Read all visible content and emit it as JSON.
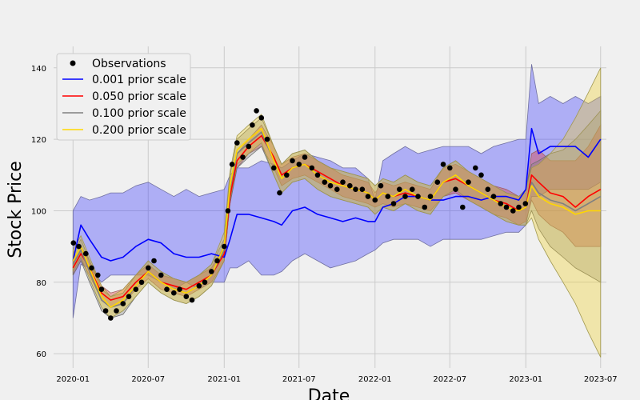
{
  "chart_data": {
    "type": "line",
    "xlabel": "Date",
    "ylabel": "Stock Price",
    "xlim": [
      "2019-11-15",
      "2023-07-15"
    ],
    "ylim": [
      56,
      146
    ],
    "x_ticks": [
      {
        "date": "2020-01-01",
        "label": "2020-01"
      },
      {
        "date": "2020-07-01",
        "label": "2020-07"
      },
      {
        "date": "2021-01-01",
        "label": "2021-01"
      },
      {
        "date": "2021-07-01",
        "label": "2021-07"
      },
      {
        "date": "2022-01-01",
        "label": "2022-01"
      },
      {
        "date": "2022-07-01",
        "label": "2022-07"
      },
      {
        "date": "2023-01-01",
        "label": "2023-01"
      },
      {
        "date": "2023-07-01",
        "label": "2023-07"
      }
    ],
    "y_ticks": [
      60,
      80,
      100,
      120,
      140
    ],
    "grid": true,
    "legend_position": "top-left",
    "observations": {
      "name": "Observations",
      "color": "#000000",
      "x": [
        "2020-01-02",
        "2020-01-15",
        "2020-02-01",
        "2020-02-15",
        "2020-03-01",
        "2020-03-10",
        "2020-03-20",
        "2020-04-01",
        "2020-04-15",
        "2020-05-01",
        "2020-05-15",
        "2020-06-01",
        "2020-06-15",
        "2020-07-01",
        "2020-07-15",
        "2020-08-01",
        "2020-08-15",
        "2020-09-01",
        "2020-09-15",
        "2020-10-01",
        "2020-10-15",
        "2020-11-01",
        "2020-11-15",
        "2020-12-01",
        "2020-12-15",
        "2021-01-01",
        "2021-01-10",
        "2021-01-20",
        "2021-02-01",
        "2021-02-15",
        "2021-03-01",
        "2021-03-10",
        "2021-03-20",
        "2021-04-01",
        "2021-04-15",
        "2021-05-01",
        "2021-05-15",
        "2021-06-01",
        "2021-06-15",
        "2021-07-01",
        "2021-07-15",
        "2021-08-01",
        "2021-08-15",
        "2021-09-01",
        "2021-09-15",
        "2021-10-01",
        "2021-10-15",
        "2021-11-01",
        "2021-11-15",
        "2021-12-01",
        "2021-12-15",
        "2022-01-01",
        "2022-01-15",
        "2022-02-01",
        "2022-02-15",
        "2022-03-01",
        "2022-03-15",
        "2022-04-01",
        "2022-04-15",
        "2022-05-01",
        "2022-05-15",
        "2022-06-01",
        "2022-06-15",
        "2022-07-01",
        "2022-07-15",
        "2022-08-01",
        "2022-08-15",
        "2022-09-01",
        "2022-09-15",
        "2022-10-01",
        "2022-10-15",
        "2022-11-01",
        "2022-11-15",
        "2022-12-01",
        "2022-12-15",
        "2022-12-31"
      ],
      "y": [
        91,
        90,
        88,
        84,
        82,
        78,
        72,
        70,
        72,
        74,
        76,
        78,
        80,
        84,
        86,
        82,
        78,
        77,
        78,
        76,
        75,
        79,
        80,
        83,
        86,
        90,
        100,
        113,
        119,
        115,
        118,
        124,
        128,
        126,
        120,
        112,
        105,
        110,
        114,
        113,
        115,
        112,
        110,
        108,
        107,
        106,
        108,
        107,
        106,
        106,
        104,
        103,
        107,
        104,
        102,
        106,
        104,
        106,
        104,
        101,
        104,
        108,
        113,
        112,
        106,
        101,
        108,
        112,
        110,
        106,
        104,
        102,
        101,
        100,
        101,
        102
      ]
    },
    "series": [
      {
        "name": "0.001 prior scale",
        "color": "#0000ff",
        "band_fill": "rgba(40,40,255,0.33)",
        "band_edge": "#7070a0",
        "x": [
          "2020-01-01",
          "2020-01-20",
          "2020-02-10",
          "2020-03-10",
          "2020-04-01",
          "2020-05-01",
          "2020-06-01",
          "2020-07-01",
          "2020-08-01",
          "2020-09-01",
          "2020-10-01",
          "2020-11-01",
          "2020-12-01",
          "2021-01-01",
          "2021-01-15",
          "2021-02-01",
          "2021-03-01",
          "2021-04-01",
          "2021-05-01",
          "2021-05-20",
          "2021-06-15",
          "2021-07-15",
          "2021-08-15",
          "2021-09-15",
          "2021-10-15",
          "2021-11-15",
          "2021-12-15",
          "2022-01-01",
          "2022-01-20",
          "2022-02-15",
          "2022-03-15",
          "2022-04-15",
          "2022-05-15",
          "2022-06-15",
          "2022-07-15",
          "2022-08-15",
          "2022-09-15",
          "2022-10-15",
          "2022-11-15",
          "2022-12-15",
          "2023-01-01",
          "2023-01-15",
          "2023-02-01",
          "2023-03-01",
          "2023-04-01",
          "2023-05-01",
          "2023-06-01",
          "2023-07-01"
        ],
        "y": [
          86,
          96,
          92,
          87,
          86,
          87,
          90,
          92,
          91,
          88,
          87,
          87,
          88,
          87,
          92,
          99,
          99,
          98,
          97,
          96,
          100,
          101,
          99,
          98,
          97,
          98,
          97,
          97,
          101,
          102,
          104,
          104,
          103,
          103,
          104,
          104,
          103,
          104,
          104,
          103,
          106,
          123,
          116,
          118,
          118,
          118,
          115,
          120
        ],
        "lower": [
          70,
          85,
          84,
          80,
          82,
          82,
          82,
          82,
          80,
          78,
          80,
          78,
          80,
          80,
          84,
          84,
          86,
          82,
          82,
          83,
          86,
          88,
          86,
          84,
          85,
          86,
          88,
          89,
          91,
          92,
          92,
          92,
          90,
          92,
          92,
          92,
          92,
          93,
          94,
          94,
          96,
          104,
          104,
          106,
          106,
          106,
          106,
          108
        ],
        "upper": [
          100,
          104,
          103,
          104,
          105,
          105,
          107,
          108,
          106,
          104,
          106,
          104,
          105,
          106,
          110,
          112,
          112,
          114,
          113,
          112,
          114,
          116,
          115,
          114,
          112,
          112,
          109,
          103,
          114,
          116,
          118,
          116,
          117,
          118,
          118,
          118,
          116,
          118,
          119,
          120,
          120,
          141,
          130,
          132,
          130,
          132,
          130,
          132
        ]
      },
      {
        "name": "0.050 prior scale",
        "color": "#ff0000",
        "band_fill": "rgba(220,40,40,0.35)",
        "band_edge": "#a06060",
        "x": [
          "2020-01-01",
          "2020-01-20",
          "2020-02-10",
          "2020-03-10",
          "2020-04-01",
          "2020-05-01",
          "2020-06-01",
          "2020-07-01",
          "2020-08-01",
          "2020-09-01",
          "2020-10-01",
          "2020-11-01",
          "2020-12-01",
          "2021-01-01",
          "2021-01-15",
          "2021-02-01",
          "2021-03-01",
          "2021-04-01",
          "2021-05-01",
          "2021-05-20",
          "2021-06-15",
          "2021-07-15",
          "2021-08-15",
          "2021-09-15",
          "2021-10-15",
          "2021-11-15",
          "2021-12-15",
          "2022-01-01",
          "2022-01-20",
          "2022-02-15",
          "2022-03-15",
          "2022-04-15",
          "2022-05-15",
          "2022-06-15",
          "2022-07-15",
          "2022-08-15",
          "2022-09-15",
          "2022-10-15",
          "2022-11-15",
          "2022-12-15",
          "2023-01-01",
          "2023-01-15",
          "2023-02-01",
          "2023-03-01",
          "2023-04-01",
          "2023-05-01",
          "2023-06-01",
          "2023-07-01"
        ],
        "y": [
          84,
          88,
          84,
          77,
          75,
          76,
          80,
          83,
          80,
          79,
          78,
          80,
          82,
          88,
          104,
          114,
          118,
          121,
          115,
          110,
          112,
          113,
          111,
          109,
          107,
          106,
          105,
          103,
          105,
          104,
          105,
          104,
          103,
          108,
          109,
          107,
          105,
          103,
          102,
          100,
          101,
          110,
          108,
          105,
          104,
          101,
          104,
          106
        ],
        "lower": [
          82,
          86,
          82,
          75,
          73,
          74,
          78,
          81,
          78,
          77,
          76,
          78,
          80,
          86,
          102,
          112,
          116,
          118,
          112,
          107,
          109,
          110,
          108,
          106,
          104,
          103,
          102,
          101,
          102,
          101,
          102,
          101,
          100,
          104,
          105,
          103,
          101,
          99,
          98,
          96,
          97,
          103,
          99,
          96,
          94,
          90,
          90,
          90
        ],
        "upper": [
          86,
          90,
          86,
          79,
          77,
          78,
          82,
          85,
          82,
          81,
          80,
          82,
          84,
          90,
          106,
          116,
          120,
          124,
          118,
          113,
          115,
          116,
          114,
          112,
          110,
          109,
          108,
          105,
          108,
          107,
          108,
          107,
          106,
          112,
          113,
          111,
          109,
          107,
          106,
          104,
          105,
          116,
          117,
          114,
          114,
          114,
          118,
          124
        ]
      },
      {
        "name": "0.100 prior scale",
        "color": "#808080",
        "band_fill": "rgba(128,128,128,0.35)",
        "band_edge": "#707070",
        "x": [
          "2020-01-01",
          "2020-01-20",
          "2020-02-10",
          "2020-03-10",
          "2020-04-01",
          "2020-05-01",
          "2020-06-01",
          "2020-07-01",
          "2020-08-01",
          "2020-09-01",
          "2020-10-01",
          "2020-11-01",
          "2020-12-01",
          "2021-01-01",
          "2021-01-15",
          "2021-02-01",
          "2021-03-01",
          "2021-04-01",
          "2021-05-01",
          "2021-05-20",
          "2021-06-15",
          "2021-07-15",
          "2021-08-15",
          "2021-09-15",
          "2021-10-15",
          "2021-11-15",
          "2021-12-15",
          "2022-01-01",
          "2022-01-20",
          "2022-02-15",
          "2022-03-15",
          "2022-04-15",
          "2022-05-15",
          "2022-06-15",
          "2022-07-15",
          "2022-08-15",
          "2022-09-15",
          "2022-10-15",
          "2022-11-15",
          "2022-12-15",
          "2023-01-01",
          "2023-01-15",
          "2023-02-01",
          "2023-03-01",
          "2023-04-01",
          "2023-05-01",
          "2023-06-01",
          "2023-07-01"
        ],
        "y": [
          85,
          89,
          83,
          75,
          73,
          74,
          79,
          83,
          80,
          78,
          77,
          79,
          82,
          89,
          106,
          116,
          119,
          122,
          114,
          109,
          112,
          113,
          110,
          108,
          107,
          106,
          105,
          103,
          105,
          104,
          106,
          104,
          103,
          108,
          110,
          107,
          105,
          103,
          101,
          100,
          101,
          108,
          105,
          103,
          102,
          100,
          102,
          104
        ],
        "lower": [
          82,
          86,
          80,
          72,
          70,
          71,
          76,
          80,
          77,
          75,
          74,
          76,
          79,
          86,
          102,
          112,
          115,
          118,
          110,
          105,
          108,
          109,
          106,
          104,
          103,
          102,
          101,
          99,
          101,
          100,
          102,
          100,
          99,
          104,
          106,
          103,
          101,
          99,
          97,
          96,
          96,
          100,
          95,
          90,
          87,
          84,
          82,
          80
        ],
        "upper": [
          88,
          92,
          86,
          78,
          76,
          77,
          82,
          86,
          83,
          81,
          80,
          82,
          85,
          92,
          110,
          120,
          123,
          126,
          118,
          113,
          116,
          117,
          114,
          112,
          111,
          110,
          109,
          107,
          109,
          108,
          110,
          108,
          107,
          112,
          114,
          111,
          109,
          107,
          105,
          104,
          106,
          113,
          114,
          116,
          117,
          120,
          124,
          128
        ]
      },
      {
        "name": "0.200 prior scale",
        "color": "#ffd700",
        "band_fill": "rgba(240,210,40,0.35)",
        "band_edge": "#a09850",
        "x": [
          "2020-01-01",
          "2020-01-20",
          "2020-02-10",
          "2020-03-10",
          "2020-04-01",
          "2020-05-01",
          "2020-06-01",
          "2020-07-01",
          "2020-08-01",
          "2020-09-01",
          "2020-10-01",
          "2020-11-01",
          "2020-12-01",
          "2021-01-01",
          "2021-01-15",
          "2021-02-01",
          "2021-03-01",
          "2021-04-01",
          "2021-05-01",
          "2021-05-20",
          "2021-06-15",
          "2021-07-15",
          "2021-08-15",
          "2021-09-15",
          "2021-10-15",
          "2021-11-15",
          "2021-12-15",
          "2022-01-01",
          "2022-01-20",
          "2022-02-15",
          "2022-03-15",
          "2022-04-15",
          "2022-05-15",
          "2022-06-15",
          "2022-07-15",
          "2022-08-15",
          "2022-09-15",
          "2022-10-15",
          "2022-11-15",
          "2022-12-15",
          "2023-01-01",
          "2023-01-15",
          "2023-02-01",
          "2023-03-01",
          "2023-04-01",
          "2023-05-01",
          "2023-06-01",
          "2023-07-01"
        ],
        "y": [
          86,
          90,
          84,
          76,
          73,
          75,
          79,
          83,
          80,
          78,
          77,
          79,
          82,
          90,
          107,
          117,
          120,
          123,
          114,
          109,
          112,
          113,
          110,
          108,
          107,
          106,
          105,
          103,
          105,
          104,
          106,
          104,
          103,
          108,
          110,
          107,
          105,
          103,
          101,
          100,
          101,
          107,
          104,
          102,
          101,
          99,
          100,
          100
        ],
        "lower": [
          83,
          87,
          81,
          73,
          70,
          72,
          76,
          80,
          77,
          75,
          74,
          76,
          79,
          86,
          103,
          113,
          116,
          119,
          110,
          105,
          108,
          109,
          106,
          104,
          103,
          102,
          101,
          99,
          101,
          100,
          102,
          100,
          99,
          104,
          106,
          103,
          101,
          99,
          97,
          96,
          96,
          98,
          92,
          86,
          80,
          74,
          66,
          59
        ],
        "upper": [
          89,
          93,
          87,
          79,
          76,
          78,
          82,
          86,
          83,
          81,
          80,
          82,
          85,
          94,
          111,
          121,
          124,
          127,
          118,
          113,
          116,
          117,
          114,
          112,
          111,
          110,
          109,
          107,
          109,
          108,
          110,
          108,
          107,
          112,
          114,
          111,
          109,
          107,
          105,
          104,
          106,
          112,
          113,
          116,
          120,
          126,
          133,
          140
        ]
      }
    ]
  }
}
